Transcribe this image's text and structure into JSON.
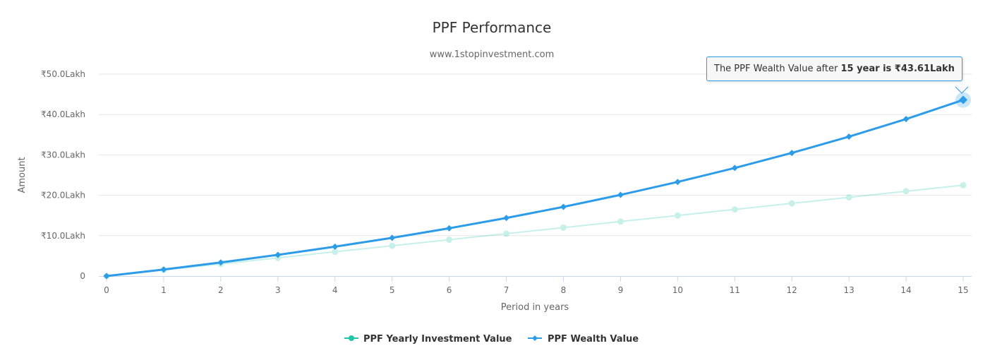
{
  "chart_data": {
    "type": "line",
    "title": "PPF Performance",
    "subtitle": "www.1stopinvestment.com",
    "xlabel": "Period in years",
    "ylabel": "Amount",
    "x": [
      0,
      1,
      2,
      3,
      4,
      5,
      6,
      7,
      8,
      9,
      10,
      11,
      12,
      13,
      14,
      15
    ],
    "ylim": [
      0,
      50
    ],
    "y_ticks": [
      0,
      10,
      20,
      30,
      40,
      50
    ],
    "y_tick_labels": [
      "0",
      "₹10.0Lakh",
      "₹20.0Lakh",
      "₹30.0Lakh",
      "₹40.0Lakh",
      "₹50.0Lakh"
    ],
    "grid": true,
    "legend_position": "bottom-center",
    "series": [
      {
        "name": "PPF Yearly Investment Value",
        "color": "#1fc7a9",
        "marker": "circle",
        "faded": true,
        "values": [
          0,
          1.5,
          3,
          4.5,
          6,
          7.5,
          9,
          10.5,
          12,
          13.5,
          15,
          16.5,
          18,
          19.5,
          21,
          22.5
        ]
      },
      {
        "name": "PPF Wealth Value",
        "color": "#2d9ce8",
        "marker": "diamond",
        "values": [
          0,
          1.62,
          3.37,
          5.25,
          7.28,
          9.47,
          11.83,
          14.38,
          17.13,
          20.1,
          23.3,
          26.76,
          30.49,
          34.52,
          38.87,
          43.61
        ]
      }
    ],
    "tooltip": {
      "prefix": "The PPF Wealth Value after ",
      "bold": "15 year is ₹43.61Lakh"
    }
  }
}
